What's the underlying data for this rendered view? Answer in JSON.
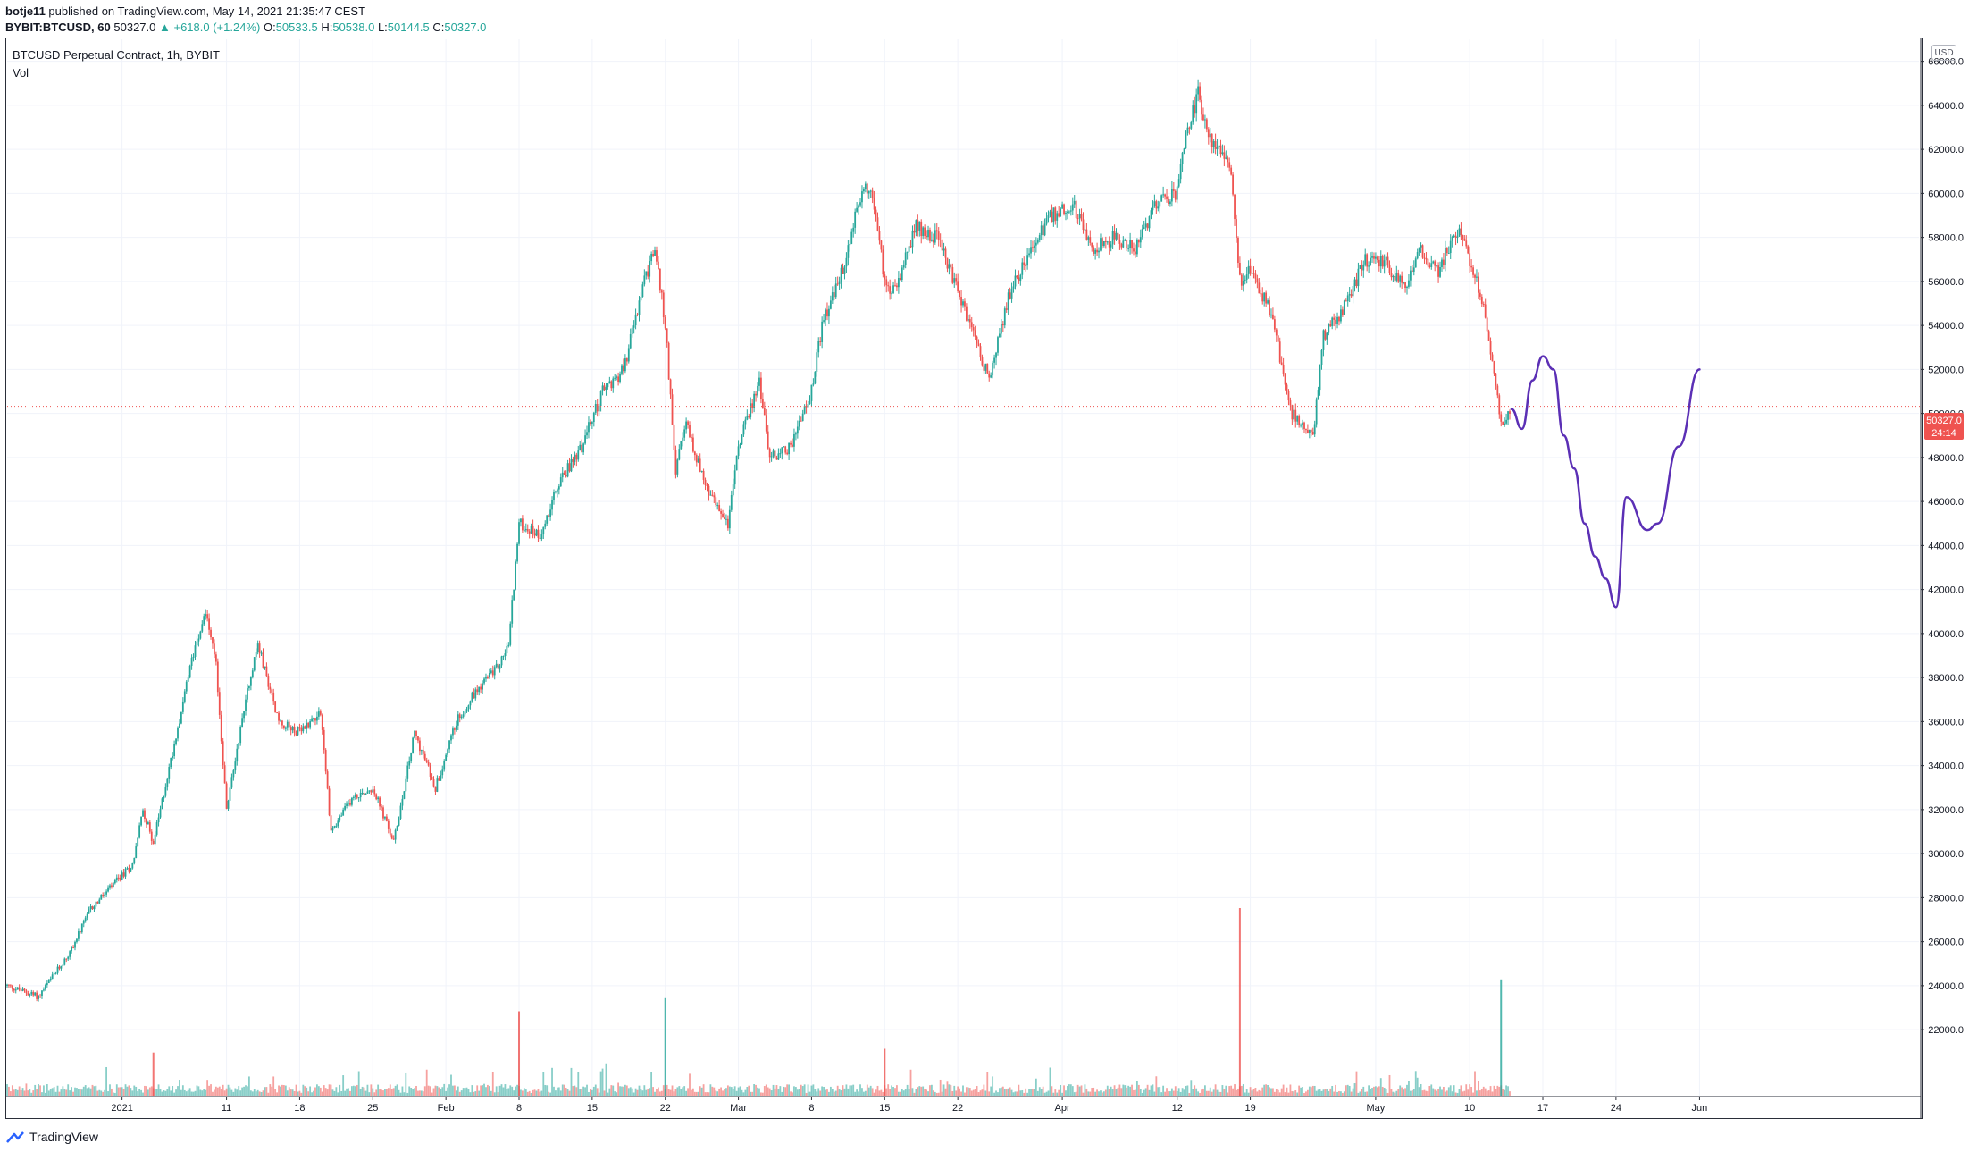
{
  "header": {
    "author": "botje11",
    "published_text": "published on TradingView.com, May 14, 2021 21:35:47 CEST",
    "symbol": "BYBIT:BTCUSD, 60",
    "last": "50327.0",
    "change": "▲ +618.0 (+1.24%)",
    "o_label": "O:",
    "o_value": "50533.5",
    "h_label": "H:",
    "h_value": "50538.0",
    "l_label": "L:",
    "l_value": "50144.5",
    "c_label": "C:",
    "c_value": "50327.0"
  },
  "legend": {
    "title": "BTCUSD Perpetual Contract, 1h, BYBIT",
    "vol_label": "Vol"
  },
  "price_scale": {
    "currency": "USD",
    "last_price": "50327.0",
    "countdown": "24:14"
  },
  "footer": {
    "brand": "TradingView"
  },
  "colors": {
    "up": "#26a69a",
    "down": "#ef5350",
    "drawing": "#5b2fb5",
    "grid": "#f0f3fa"
  },
  "chart_data": {
    "type": "candlestick",
    "title": "BTCUSD Perpetual Contract, 1h, BYBIT",
    "ylim": [
      19000,
      67000
    ],
    "y_ticks": [
      "22000.0",
      "24000.0",
      "26000.0",
      "28000.0",
      "30000.0",
      "32000.0",
      "34000.0",
      "36000.0",
      "38000.0",
      "40000.0",
      "42000.0",
      "44000.0",
      "46000.0",
      "48000.0",
      "50000.0",
      "52000.0",
      "54000.0",
      "56000.0",
      "58000.0",
      "60000.0",
      "62000.0",
      "64000.0",
      "66000.0"
    ],
    "x_ticks": [
      {
        "label": "2021",
        "date": "2021-01-01"
      },
      {
        "label": "11",
        "date": "2021-01-11"
      },
      {
        "label": "18",
        "date": "2021-01-18"
      },
      {
        "label": "25",
        "date": "2021-01-25"
      },
      {
        "label": "Feb",
        "date": "2021-02-01"
      },
      {
        "label": "8",
        "date": "2021-02-08"
      },
      {
        "label": "15",
        "date": "2021-02-15"
      },
      {
        "label": "22",
        "date": "2021-02-22"
      },
      {
        "label": "Mar",
        "date": "2021-03-01"
      },
      {
        "label": "8",
        "date": "2021-03-08"
      },
      {
        "label": "15",
        "date": "2021-03-15"
      },
      {
        "label": "22",
        "date": "2021-03-22"
      },
      {
        "label": "Apr",
        "date": "2021-04-01"
      },
      {
        "label": "12",
        "date": "2021-04-12"
      },
      {
        "label": "19",
        "date": "2021-04-19"
      },
      {
        "label": "May",
        "date": "2021-05-01"
      },
      {
        "label": "10",
        "date": "2021-05-10"
      },
      {
        "label": "17",
        "date": "2021-05-17"
      },
      {
        "label": "24",
        "date": "2021-05-24"
      },
      {
        "label": "Jun",
        "date": "2021-06-01"
      }
    ],
    "price_path": [
      [
        "2020-12-21",
        24000
      ],
      [
        "2020-12-24",
        23500
      ],
      [
        "2020-12-27",
        25500
      ],
      [
        "2020-12-29",
        27500
      ],
      [
        "2020-12-31",
        28500
      ],
      [
        "2021-01-02",
        29500
      ],
      [
        "2021-01-03",
        32000
      ],
      [
        "2021-01-04",
        30500
      ],
      [
        "2021-01-06",
        35000
      ],
      [
        "2021-01-08",
        39500
      ],
      [
        "2021-01-09",
        41000
      ],
      [
        "2021-01-10",
        38500
      ],
      [
        "2021-01-11",
        32000
      ],
      [
        "2021-01-13",
        37500
      ],
      [
        "2021-01-14",
        39500
      ],
      [
        "2021-01-16",
        36000
      ],
      [
        "2021-01-18",
        35500
      ],
      [
        "2021-01-20",
        36500
      ],
      [
        "2021-01-21",
        31000
      ],
      [
        "2021-01-23",
        32500
      ],
      [
        "2021-01-25",
        33000
      ],
      [
        "2021-01-27",
        30500
      ],
      [
        "2021-01-29",
        35500
      ],
      [
        "2021-01-31",
        33000
      ],
      [
        "2021-02-02",
        36000
      ],
      [
        "2021-02-04",
        37500
      ],
      [
        "2021-02-06",
        38500
      ],
      [
        "2021-02-07",
        39500
      ],
      [
        "2021-02-08",
        45000
      ],
      [
        "2021-02-10",
        44500
      ],
      [
        "2021-02-12",
        47000
      ],
      [
        "2021-02-14",
        48500
      ],
      [
        "2021-02-16",
        51000
      ],
      [
        "2021-02-18",
        52000
      ],
      [
        "2021-02-20",
        56000
      ],
      [
        "2021-02-21",
        57500
      ],
      [
        "2021-02-22",
        54000
      ],
      [
        "2021-02-23",
        47500
      ],
      [
        "2021-02-24",
        49500
      ],
      [
        "2021-02-26",
        46500
      ],
      [
        "2021-02-28",
        45000
      ],
      [
        "2021-03-01",
        48500
      ],
      [
        "2021-03-03",
        51500
      ],
      [
        "2021-03-04",
        48000
      ],
      [
        "2021-03-06",
        48500
      ],
      [
        "2021-03-08",
        51000
      ],
      [
        "2021-03-09",
        54000
      ],
      [
        "2021-03-11",
        56500
      ],
      [
        "2021-03-13",
        60500
      ],
      [
        "2021-03-14",
        59500
      ],
      [
        "2021-03-15",
        56000
      ],
      [
        "2021-03-16",
        55500
      ],
      [
        "2021-03-18",
        58500
      ],
      [
        "2021-03-20",
        58000
      ],
      [
        "2021-03-22",
        55500
      ],
      [
        "2021-03-24",
        53000
      ],
      [
        "2021-03-25",
        51500
      ],
      [
        "2021-03-27",
        55500
      ],
      [
        "2021-03-29",
        57500
      ],
      [
        "2021-03-31",
        59000
      ],
      [
        "2021-04-02",
        59500
      ],
      [
        "2021-04-04",
        57500
      ],
      [
        "2021-04-06",
        58000
      ],
      [
        "2021-04-08",
        57500
      ],
      [
        "2021-04-10",
        59500
      ],
      [
        "2021-04-12",
        60000
      ],
      [
        "2021-04-13",
        63000
      ],
      [
        "2021-04-14",
        64500
      ],
      [
        "2021-04-15",
        62500
      ],
      [
        "2021-04-17",
        61500
      ],
      [
        "2021-04-18",
        56000
      ],
      [
        "2021-04-19",
        56500
      ],
      [
        "2021-04-21",
        54500
      ],
      [
        "2021-04-23",
        50000
      ],
      [
        "2021-04-25",
        49000
      ],
      [
        "2021-04-26",
        53500
      ],
      [
        "2021-04-28",
        54800
      ],
      [
        "2021-04-30",
        57000
      ],
      [
        "2021-05-02",
        56800
      ],
      [
        "2021-05-04",
        55500
      ],
      [
        "2021-05-05",
        57500
      ],
      [
        "2021-05-07",
        56500
      ],
      [
        "2021-05-09",
        58500
      ],
      [
        "2021-05-10",
        57000
      ],
      [
        "2021-05-11",
        55500
      ],
      [
        "2021-05-12",
        53000
      ],
      [
        "2021-05-13",
        49500
      ],
      [
        "2021-05-14",
        50300
      ]
    ],
    "volume_spikes": [
      {
        "date": "2021-01-04",
        "value": 0.23,
        "dir": "down"
      },
      {
        "date": "2021-02-08",
        "value": 0.45,
        "dir": "down"
      },
      {
        "date": "2021-02-22",
        "value": 0.52,
        "dir": "up"
      },
      {
        "date": "2021-03-15",
        "value": 0.25,
        "dir": "down"
      },
      {
        "date": "2021-04-18",
        "value": 1.0,
        "dir": "down"
      },
      {
        "date": "2021-05-13",
        "value": 0.62,
        "dir": "up"
      }
    ],
    "last_price_line": 50327.0,
    "annotation": {
      "type": "freehand",
      "points": [
        [
          "2021-05-14",
          50200
        ],
        [
          "2021-05-15",
          49300
        ],
        [
          "2021-05-16",
          51500
        ],
        [
          "2021-05-17",
          52600
        ],
        [
          "2021-05-18",
          52000
        ],
        [
          "2021-05-19",
          49000
        ],
        [
          "2021-05-20",
          47500
        ],
        [
          "2021-05-21",
          45000
        ],
        [
          "2021-05-22",
          43500
        ],
        [
          "2021-05-23",
          42500
        ],
        [
          "2021-05-24",
          41200
        ],
        [
          "2021-05-25",
          46200
        ],
        [
          "2021-05-27",
          44700
        ],
        [
          "2021-05-28",
          45000
        ],
        [
          "2021-05-30",
          48500
        ],
        [
          "2021-06-01",
          52000
        ]
      ]
    }
  }
}
